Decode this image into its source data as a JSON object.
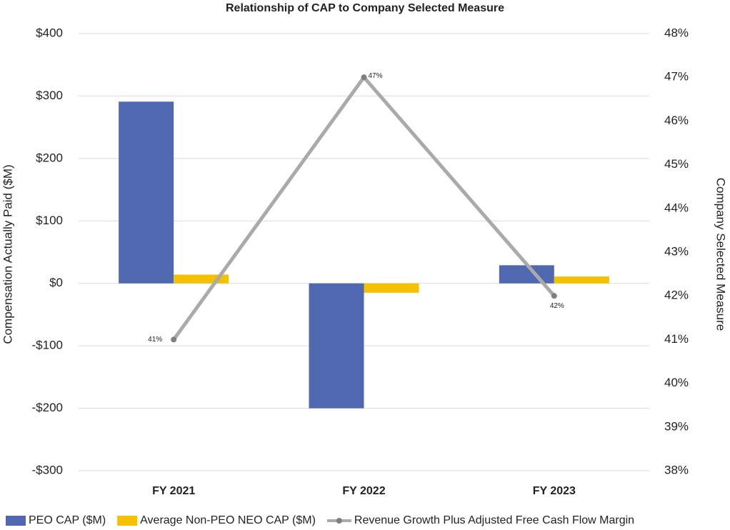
{
  "chart_data": {
    "type": "bar",
    "title": "Relationship of CAP to Company Selected Measure",
    "categories": [
      "FY 2021",
      "FY 2022",
      "FY 2023"
    ],
    "y_label": "Compensation Actually Paid ($M)",
    "y2_label": "Company Selected Measure",
    "ylim": [
      -300,
      400
    ],
    "yticks": [
      {
        "value": -300,
        "label": "-$300"
      },
      {
        "value": -200,
        "label": "-$200"
      },
      {
        "value": -100,
        "label": "-$100"
      },
      {
        "value": 0,
        "label": "$0"
      },
      {
        "value": 100,
        "label": "$100"
      },
      {
        "value": 200,
        "label": "$200"
      },
      {
        "value": 300,
        "label": "$300"
      },
      {
        "value": 400,
        "label": "$400"
      }
    ],
    "y2lim": [
      38,
      48
    ],
    "y2ticks": [
      {
        "value": 38,
        "label": "38%"
      },
      {
        "value": 39,
        "label": "39%"
      },
      {
        "value": 40,
        "label": "40%"
      },
      {
        "value": 41,
        "label": "41%"
      },
      {
        "value": 42,
        "label": "42%"
      },
      {
        "value": 43,
        "label": "43%"
      },
      {
        "value": 44,
        "label": "44%"
      },
      {
        "value": 45,
        "label": "45%"
      },
      {
        "value": 46,
        "label": "46%"
      },
      {
        "value": 47,
        "label": "47%"
      },
      {
        "value": 48,
        "label": "48%"
      }
    ],
    "grid": true,
    "legend": "bottom",
    "series": [
      {
        "name": "PEO CAP ($M)",
        "type": "bar",
        "color": "#5068b0",
        "values": [
          291,
          -200,
          29
        ]
      },
      {
        "name": "Average Non-PEO NEO CAP ($M)",
        "type": "bar",
        "color": "#f5c000",
        "values": [
          14,
          -15,
          11
        ]
      },
      {
        "name": "Revenue Growth Plus Adjusted Free Cash Flow Margin",
        "type": "line",
        "axis": "y2",
        "color": "#aaaaaa",
        "values": [
          41,
          47,
          42
        ],
        "value_labels": [
          "41%",
          "47%",
          "42%"
        ]
      }
    ]
  }
}
